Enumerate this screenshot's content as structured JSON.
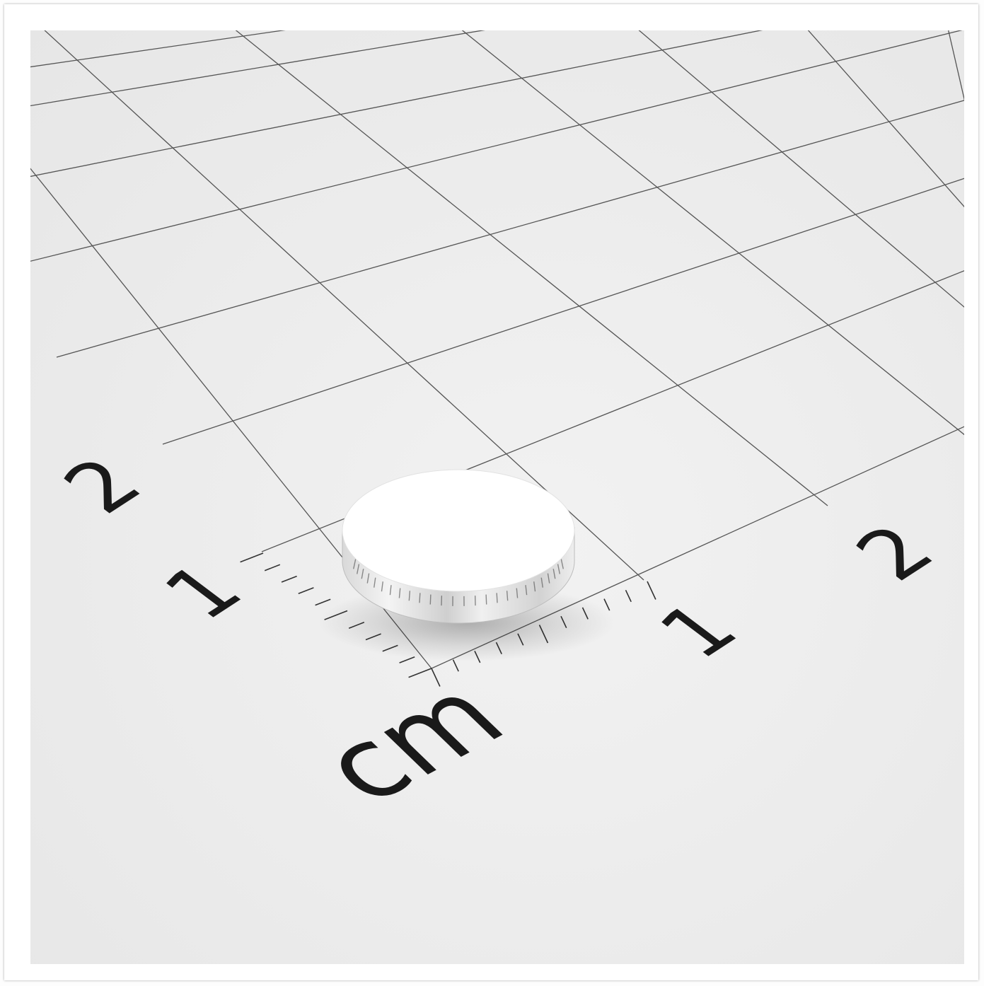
{
  "scene": {
    "background_color": "#ececec",
    "grid_line_color": "#555555",
    "magnet_color": "#ffffff"
  },
  "labels": {
    "axis_left_1": "1",
    "axis_left_2": "2",
    "axis_right_1": "1",
    "axis_right_2": "2",
    "unit": "cm"
  }
}
